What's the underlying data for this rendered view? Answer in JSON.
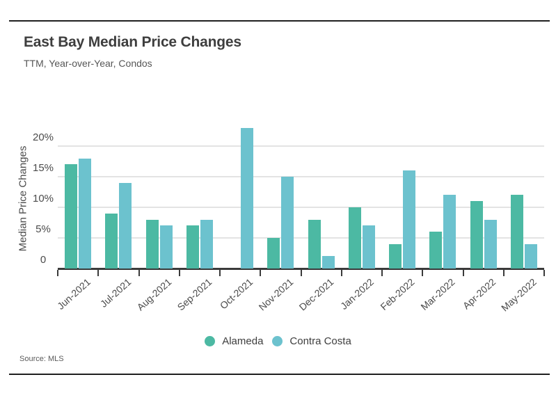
{
  "header": {
    "title": "East Bay Median Price Changes",
    "subtitle": "TTM, Year-over-Year, Condos"
  },
  "footer": {
    "source": "Source: MLS"
  },
  "chart_data": {
    "type": "bar",
    "title": "East Bay Median Price Changes",
    "subtitle": "TTM, Year-over-Year, Condos",
    "xlabel": "",
    "ylabel": "Median Price Changes",
    "categories": [
      "Jun-2021",
      "Jul-2021",
      "Aug-2021",
      "Sep-2021",
      "Oct-2021",
      "Nov-2021",
      "Dec-2021",
      "Jan-2022",
      "Feb-2022",
      "Mar-2022",
      "Apr-2022",
      "May-2022"
    ],
    "series": [
      {
        "name": "Alameda",
        "color": "#4CB9A3",
        "values": [
          17,
          9,
          8,
          7,
          null,
          5,
          8,
          10,
          4,
          6,
          11,
          12
        ]
      },
      {
        "name": "Contra Costa",
        "color": "#6CC2CE",
        "values": [
          18,
          14,
          7,
          8,
          23,
          15,
          2,
          7,
          16,
          12,
          8,
          4
        ]
      }
    ],
    "y_ticks": [
      {
        "value": 0,
        "label": "0"
      },
      {
        "value": 5,
        "label": "5%"
      },
      {
        "value": 10,
        "label": "10%"
      },
      {
        "value": 15,
        "label": "15%"
      },
      {
        "value": 20,
        "label": "20%"
      }
    ],
    "ylim": [
      0,
      23.5
    ],
    "unit": "percent",
    "grid": "horizontal",
    "legend_position": "bottom"
  }
}
